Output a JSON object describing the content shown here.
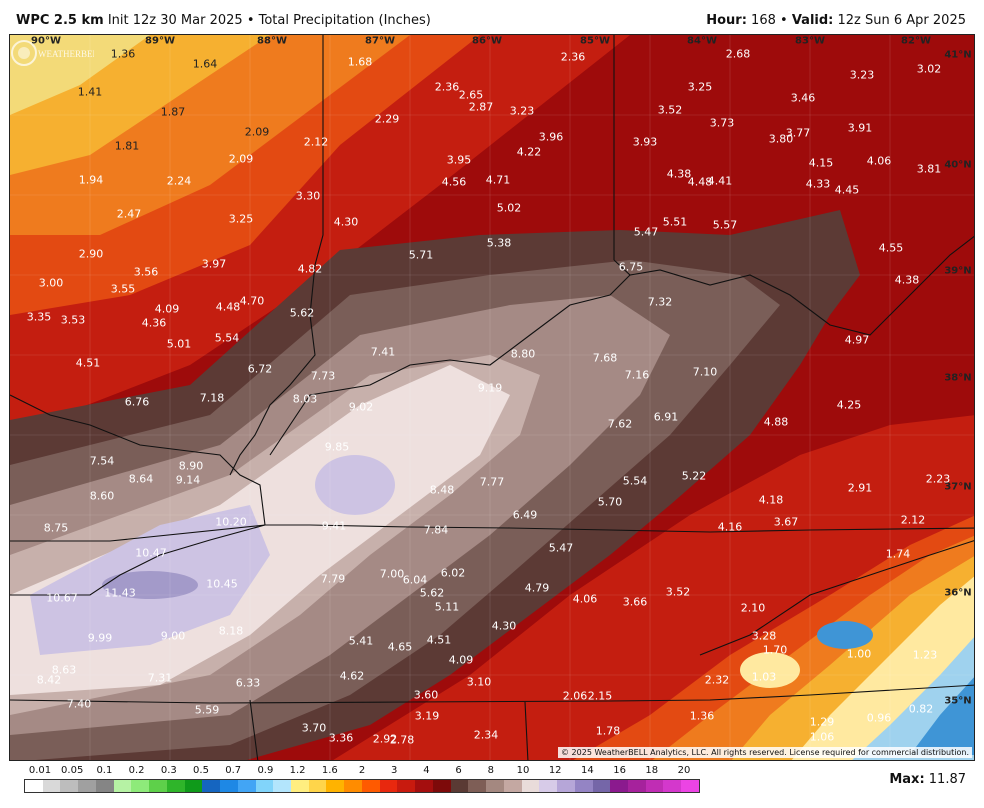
{
  "header": {
    "model": "WPC 2.5 km",
    "init": "Init 12z 30 Mar 2025",
    "sep": "•",
    "product": "Total Precipitation (Inches)",
    "hour_label": "Hour:",
    "hour_value": "168",
    "valid_label": "Valid:",
    "valid_value": "12z Sun 6 Apr 2025"
  },
  "longitudes": [
    "90°W",
    "89°W",
    "88°W",
    "87°W",
    "86°W",
    "85°W",
    "84°W",
    "83°W",
    "82°W"
  ],
  "latitudes": [
    "41°N",
    "40°N",
    "39°N",
    "38°N",
    "37°N",
    "36°N",
    "35°N"
  ],
  "values": [
    "1.36",
    "1.64",
    "1.68",
    "2.36",
    "2.68",
    "1.41",
    "3.23",
    "3.02",
    "2.36",
    "2.65",
    "3.25",
    "2.87",
    "3.23",
    "3.52",
    "3.46",
    "1.87",
    "2.29",
    "3.73",
    "2.09",
    "3.77",
    "3.91",
    "3.96",
    "3.80",
    "1.81",
    "2.12",
    "3.93",
    "2.09",
    "3.95",
    "4.22",
    "4.15",
    "4.06",
    "3.81",
    "4.56",
    "4.71",
    "4.38",
    "4.48",
    "4.41",
    "4.33",
    "4.45",
    "1.94",
    "2.24",
    "3.30",
    "5.02",
    "2.47",
    "3.25",
    "4.30",
    "5.51",
    "5.57",
    "5.47",
    "5.38",
    "2.90",
    "5.71",
    "4.55",
    "3.56",
    "3.97",
    "4.82",
    "6.75",
    "4.38",
    "3.00",
    "3.55",
    "4.70",
    "4.09",
    "4.48",
    "7.32",
    "3.35",
    "3.53",
    "4.36",
    "5.62",
    "5.01",
    "5.54",
    "4.97",
    "7.41",
    "8.80",
    "7.68",
    "4.51",
    "6.72",
    "7.73",
    "7.16",
    "7.10",
    "9.19",
    "6.76",
    "7.18",
    "8.03",
    "9.02",
    "4.25",
    "6.91",
    "7.62",
    "4.88",
    "9.85",
    "7.54",
    "8.90",
    "8.64",
    "9.14",
    "7.77",
    "5.22",
    "2.23",
    "8.48",
    "5.54",
    "2.91",
    "8.60",
    "4.18",
    "10.20",
    "5.70",
    "6.49",
    "4.16",
    "3.67",
    "2.12",
    "8.75",
    "9.41",
    "7.84",
    "10.47",
    "5.47",
    "1.74",
    "7.00",
    "6.02",
    "7.79",
    "6.04",
    "10.45",
    "4.79",
    "10.67",
    "11.43",
    "5.62",
    "3.52",
    "4.06",
    "3.66",
    "5.11",
    "2.10",
    "9.99",
    "9.00",
    "8.18",
    "4.30",
    "3.28",
    "5.41",
    "4.65",
    "4.51",
    "1.70",
    "1.00",
    "1.23",
    "8.63",
    "4.09",
    "8.42",
    "7.31",
    "6.33",
    "4.62",
    "3.10",
    "2.32",
    "1.03",
    "3.60",
    "2.06",
    "2.15",
    "7.40",
    "5.59",
    "3.19",
    "1.36",
    "0.82",
    "1.29",
    "0.96",
    "3.70",
    "3.36",
    "2.92",
    "2.78",
    "2.34",
    "1.78",
    "1.06"
  ],
  "legend": {
    "ticks": [
      "0.01",
      "0.05",
      "0.1",
      "0.2",
      "0.3",
      "0.5",
      "0.7",
      "0.9",
      "1.2",
      "1.6",
      "2",
      "3",
      "4",
      "6",
      "8",
      "10",
      "12",
      "14",
      "16",
      "18",
      "20"
    ],
    "colors": [
      "#ffffff",
      "#d9d9d9",
      "#bdbdbd",
      "#a0a0a0",
      "#858585",
      "#b6f2a4",
      "#8eea7a",
      "#5ed04a",
      "#2fb52a",
      "#0f9a1a",
      "#1565c0",
      "#1e88e5",
      "#42a5f5",
      "#81d4fa",
      "#b3e5fc",
      "#ffee80",
      "#ffd54a",
      "#ffb300",
      "#ff8c00",
      "#ff5a00",
      "#e8280e",
      "#c81a0e",
      "#a40e0e",
      "#7d0a0a",
      "#5a3a34",
      "#7e5e56",
      "#a48880",
      "#c4a8a2",
      "#e9dcda",
      "#d7cbe8",
      "#b6a6d8",
      "#9484c4",
      "#7566a8",
      "#8b1a8e",
      "#a6229c",
      "#c02db4",
      "#d438cc",
      "#ec44e4"
    ],
    "max_label": "Max:",
    "max_value": "11.87"
  },
  "copyright": "© 2025 WeatherBELL Analytics, LLC. All rights reserved. License required for commercial distribution.",
  "logo_text": "WEATHERBELL",
  "colors": {
    "c0": "#f3da78",
    "c1": "#f6b030",
    "c2": "#ef7b1e",
    "c3": "#e34a12",
    "c4": "#c41e10",
    "c5": "#9e0b0b",
    "c6": "#5c3a35",
    "c7": "#7a5e58",
    "c8": "#a58a85",
    "c9": "#c7b0ab",
    "c10": "#eee0de",
    "c11": "#cdc3e3",
    "c12": "#a39ac9",
    "blue1": "#9fd2ee",
    "blue2": "#3f95d6",
    "yel": "#ffe9a0",
    "org": "#ffb347"
  }
}
